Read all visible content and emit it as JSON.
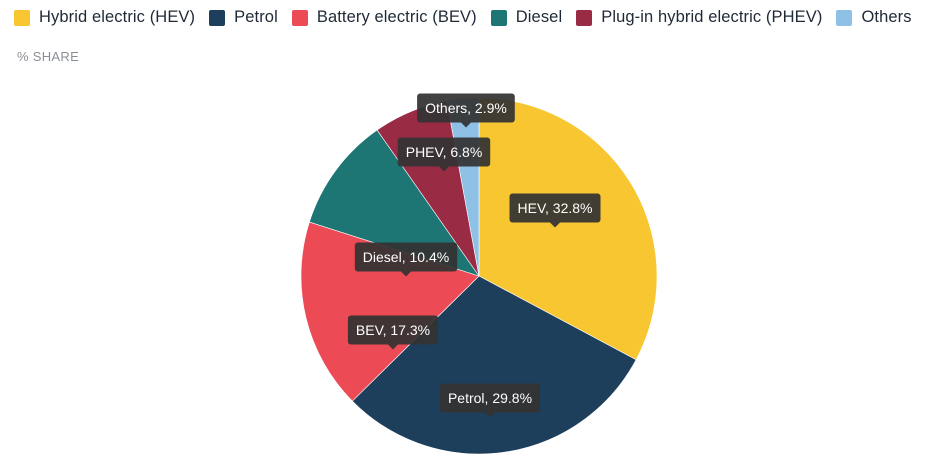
{
  "legend": {
    "items": [
      {
        "label": "Hybrid electric (HEV)",
        "color": "#f8c630"
      },
      {
        "label": "Petrol",
        "color": "#1d3f5c"
      },
      {
        "label": "Battery electric (BEV)",
        "color": "#ec4a55"
      },
      {
        "label": "Diesel",
        "color": "#1d7674"
      },
      {
        "label": "Plug-in hybrid electric (PHEV)",
        "color": "#9a2b44"
      },
      {
        "label": "Others",
        "color": "#8fc1e6"
      }
    ]
  },
  "subtitle": "% SHARE",
  "chart_data": {
    "type": "pie",
    "unit": "%",
    "categories": [
      "Hybrid electric (HEV)",
      "Petrol",
      "Battery electric (BEV)",
      "Diesel",
      "Plug-in hybrid electric (PHEV)",
      "Others"
    ],
    "values": [
      32.8,
      29.8,
      17.3,
      10.4,
      6.8,
      2.9
    ],
    "colors": [
      "#f8c630",
      "#1d3f5c",
      "#ec4a55",
      "#1d7674",
      "#9a2b44",
      "#8fc1e6"
    ],
    "data_labels": [
      "HEV, 32.8%",
      "Petrol, 29.8%",
      "BEV, 17.3%",
      "Diesel, 10.4%",
      "PHEV, 6.8%",
      "Others, 2.9%"
    ],
    "start_angle": "12 o'clock",
    "direction": "clockwise",
    "label_style": "dark callouts with pointer"
  }
}
